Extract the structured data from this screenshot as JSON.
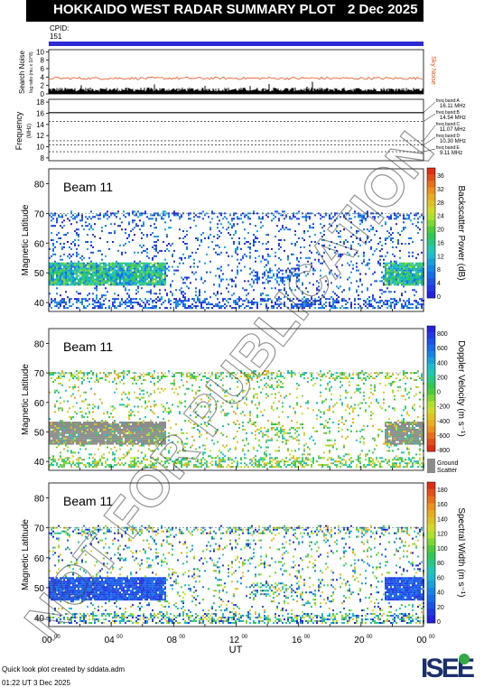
{
  "header": {
    "title": "HOKKAIDO WEST RADAR SUMMARY PLOT",
    "date": "2 Dec 2025"
  },
  "cpid": {
    "label": "CPID:",
    "value": "151"
  },
  "colors": {
    "cpid_bar": "#2b2bd6",
    "sky_noise": "#e8501c",
    "search_noise": "#000000",
    "ground_scatter": "#8c8c8c"
  },
  "noise_panel": {
    "ylabel": "Search Noise",
    "ysublabel": "log ratio (mu x 10^8)",
    "right_label": "Sky Noise",
    "yticks": [
      "0",
      "2",
      "4",
      "6",
      "8",
      "10"
    ],
    "ylim": [
      0,
      10.5
    ]
  },
  "freq_panel": {
    "ylabel": "Frequency",
    "yunit": "(MHz)",
    "yticks": [
      "8",
      "10",
      "12",
      "14",
      "16",
      "18"
    ],
    "ylim": [
      7.5,
      18.5
    ],
    "bands": [
      {
        "name": "freq band:A",
        "value": "16.11 MHz",
        "mhz": 16.11
      },
      {
        "name": "freq band:B",
        "value": "14.54 MHz",
        "mhz": 14.54
      },
      {
        "name": "freq band:C",
        "value": "11.07 MHz",
        "mhz": 11.07
      },
      {
        "name": "freq band:D",
        "value": "10.30 MHz",
        "mhz": 10.3
      },
      {
        "name": "freq band:E",
        "value": "9.11 MHz",
        "mhz": 9.11
      }
    ]
  },
  "panels": [
    {
      "id": "power",
      "beam": "Beam 11",
      "ylabel": "Magnetic Latitude",
      "yticks": [
        "40",
        "50",
        "60",
        "70",
        "80"
      ],
      "cbar_label": "Backscatter Power (dB)",
      "cbar_ticks": [
        "36",
        "32",
        "28",
        "24",
        "20",
        "16",
        "12",
        "8",
        "4",
        "0"
      ]
    },
    {
      "id": "velocity",
      "beam": "Beam 11",
      "ylabel": "Magnetic Latitude",
      "yticks": [
        "40",
        "50",
        "60",
        "70",
        "80"
      ],
      "cbar_label": "Doppler Velocity (m s⁻¹)",
      "cbar_ticks": [
        "800",
        "600",
        "400",
        "200",
        "0",
        "-200",
        "-400",
        "-600",
        "-800"
      ],
      "gs_label_1": "Ground",
      "gs_label_2": "Scatter"
    },
    {
      "id": "width",
      "beam": "Beam 11",
      "ylabel": "Magnetic Latitude",
      "yticks": [
        "40",
        "50",
        "60",
        "70",
        "80"
      ],
      "cbar_label": "Spectral Width (m s⁻¹)",
      "cbar_ticks": [
        "180",
        "160",
        "140",
        "120",
        "100",
        "80",
        "60",
        "40",
        "20",
        "0"
      ]
    }
  ],
  "xaxis": {
    "ticks": [
      "00",
      "04",
      "08",
      "12",
      "16",
      "20",
      "00"
    ],
    "tick_sup": "00",
    "label": "UT"
  },
  "watermark": "NOT FOR PUBLICATION",
  "footer": {
    "line1": "Quick look plot created by sddata.adm",
    "line2": "01:22 UT  3 Dec 2025",
    "logo": "ISEE"
  },
  "chart_data": {
    "type": "heatmap",
    "title": "HOKKAIDO WEST RADAR SUMMARY PLOT",
    "xlabel": "UT",
    "x_range_hours": [
      0,
      24
    ],
    "ylabel": "Magnetic Latitude",
    "ylim": [
      37,
      85
    ],
    "series": [
      {
        "name": "Backscatter Power (dB)",
        "range": [
          0,
          37
        ]
      },
      {
        "name": "Doppler Velocity (m s⁻¹)",
        "range": [
          -800,
          800
        ]
      },
      {
        "name": "Spectral Width (m s⁻¹)",
        "range": [
          0,
          185
        ]
      }
    ]
  }
}
